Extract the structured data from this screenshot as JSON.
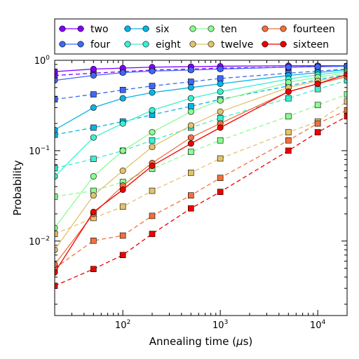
{
  "chart_data": {
    "type": "line",
    "xlabel_prefix": "Annealing time (",
    "xlabel_mu": "μ",
    "xlabel_suffix": "s)",
    "ylabel": "Probability",
    "xscale": "log",
    "yscale": "log",
    "xlim": [
      20,
      20000
    ],
    "ylim": [
      0.0015,
      1.0
    ],
    "x": [
      20,
      50,
      100,
      200,
      500,
      1000,
      5000,
      10000,
      20000
    ],
    "x_tick_labels": [
      {
        "base": "10",
        "exp": "2",
        "value": 100
      },
      {
        "base": "10",
        "exp": "3",
        "value": 1000
      },
      {
        "base": "10",
        "exp": "4",
        "value": 10000
      }
    ],
    "y_tick_labels": [
      {
        "base": "10",
        "exp": "−2",
        "value": 0.01
      },
      {
        "base": "10",
        "exp": "−1",
        "value": 0.1
      },
      {
        "base": "10",
        "exp": "0",
        "value": 1
      }
    ],
    "legend_position": "top, above plot, 4 columns",
    "series": [
      {
        "name": "two",
        "color": "#7f00ff",
        "circles": [
          0.75,
          0.8,
          0.82,
          0.84,
          0.85,
          0.86,
          0.87,
          0.87,
          0.87
        ],
        "squares": [
          0.68,
          0.72,
          0.75,
          0.78,
          0.8,
          0.82,
          0.84,
          0.85,
          0.86
        ]
      },
      {
        "name": "four",
        "color": "#3e68f5",
        "circles": [
          0.6,
          0.68,
          0.73,
          0.76,
          0.78,
          0.8,
          0.84,
          0.85,
          0.86
        ],
        "squares": [
          0.37,
          0.42,
          0.47,
          0.52,
          0.58,
          0.63,
          0.72,
          0.76,
          0.8
        ]
      },
      {
        "name": "six",
        "color": "#06b4e6",
        "circles": [
          0.17,
          0.3,
          0.38,
          0.44,
          0.5,
          0.55,
          0.68,
          0.73,
          0.79
        ],
        "squares": [
          0.15,
          0.18,
          0.21,
          0.25,
          0.31,
          0.37,
          0.52,
          0.61,
          0.7
        ]
      },
      {
        "name": "eight",
        "color": "#3af0d0",
        "circles": [
          0.052,
          0.14,
          0.2,
          0.28,
          0.38,
          0.45,
          0.62,
          0.69,
          0.76
        ],
        "squares": [
          0.064,
          0.081,
          0.1,
          0.13,
          0.18,
          0.23,
          0.38,
          0.48,
          0.6
        ]
      },
      {
        "name": "ten",
        "color": "#8cfc92",
        "circles": [
          0.014,
          0.052,
          0.1,
          0.16,
          0.27,
          0.36,
          0.57,
          0.65,
          0.73
        ],
        "squares": [
          0.031,
          0.036,
          0.045,
          0.063,
          0.097,
          0.13,
          0.24,
          0.32,
          0.42
        ]
      },
      {
        "name": "twelve",
        "color": "#e2c26e",
        "circles": [
          0.008,
          0.032,
          0.06,
          0.11,
          0.19,
          0.27,
          0.5,
          0.59,
          0.68
        ],
        "squares": [
          0.012,
          0.018,
          0.024,
          0.036,
          0.057,
          0.082,
          0.16,
          0.21,
          0.35
        ]
      },
      {
        "name": "fourteen",
        "color": "#f2703a",
        "circles": [
          0.0055,
          0.02,
          0.041,
          0.073,
          0.14,
          0.2,
          0.45,
          0.55,
          0.66
        ],
        "squares": [
          0.005,
          0.0101,
          0.0115,
          0.019,
          0.032,
          0.05,
          0.13,
          0.2,
          0.28
        ]
      },
      {
        "name": "sixteen",
        "color": "#ee0000",
        "circles": [
          0.0045,
          0.021,
          0.037,
          0.068,
          0.12,
          0.18,
          0.45,
          0.55,
          0.7
        ],
        "squares": [
          0.0032,
          0.0049,
          0.007,
          0.012,
          0.023,
          0.035,
          0.1,
          0.16,
          0.24
        ]
      }
    ]
  }
}
